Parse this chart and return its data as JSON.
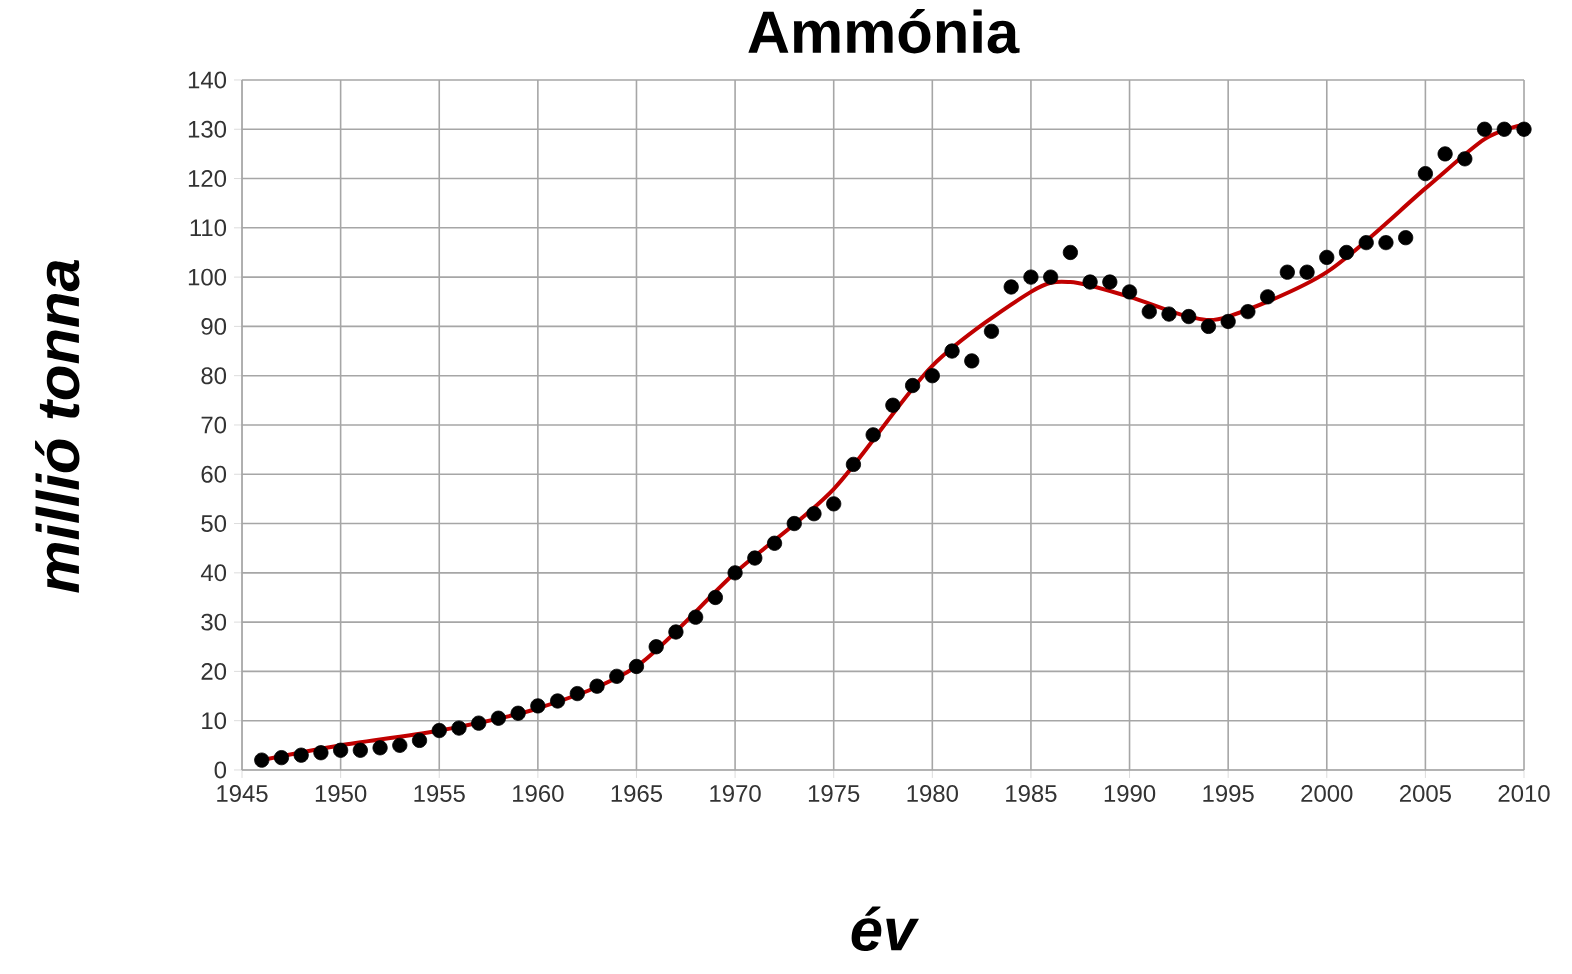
{
  "chart_data": {
    "type": "scatter",
    "title": "Ammónia",
    "xlabel": "év",
    "ylabel": "millió tonna",
    "xlim": [
      1945,
      2010
    ],
    "xticks": [
      1945,
      1950,
      1955,
      1960,
      1965,
      1970,
      1975,
      1980,
      1985,
      1990,
      1995,
      2000,
      2005,
      2010
    ],
    "ylim": [
      0,
      140
    ],
    "yticks": [
      0,
      10,
      20,
      30,
      40,
      50,
      60,
      70,
      80,
      90,
      100,
      110,
      120,
      130,
      140
    ],
    "grid": true,
    "series": [
      {
        "marker": "circle",
        "color": "#000000",
        "x": [
          1946,
          1947,
          1948,
          1949,
          1950,
          1951,
          1952,
          1953,
          1954,
          1955,
          1956,
          1957,
          1958,
          1959,
          1960,
          1961,
          1962,
          1963,
          1964,
          1965,
          1966,
          1967,
          1968,
          1969,
          1970,
          1971,
          1972,
          1973,
          1974,
          1975,
          1976,
          1977,
          1978,
          1979,
          1980,
          1981,
          1982,
          1983,
          1984,
          1985,
          1986,
          1987,
          1988,
          1989,
          1990,
          1991,
          1992,
          1993,
          1994,
          1995,
          1996,
          1997,
          1998,
          1999,
          2000,
          2001,
          2002,
          2003,
          2004,
          2005,
          2006,
          2007,
          2008,
          2009,
          2010
        ],
        "values": [
          2,
          2.5,
          3,
          3.5,
          4,
          4,
          4.5,
          5,
          6,
          8,
          8.5,
          9.5,
          10.5,
          11.5,
          13,
          14,
          15.5,
          17,
          19,
          21,
          25,
          28,
          31,
          35,
          40,
          43,
          46,
          50,
          52,
          54,
          62,
          68,
          74,
          78,
          80,
          85,
          83,
          89,
          98,
          100,
          100,
          105,
          99,
          99,
          97,
          93,
          92.5,
          92,
          90,
          91,
          93,
          96,
          101,
          101,
          104,
          105,
          107,
          107,
          108,
          121,
          125,
          124,
          130,
          130,
          130
        ]
      },
      {
        "type": "line",
        "marker": "none",
        "color": "#c00000",
        "x": [
          1946,
          1950,
          1955,
          1960,
          1965,
          1970,
          1975,
          1980,
          1985,
          1987,
          1990,
          1993,
          1995,
          2000,
          2005,
          2008,
          2010
        ],
        "values": [
          2,
          5,
          8,
          12.5,
          21,
          40,
          57,
          82,
          97,
          99,
          96,
          92,
          92,
          101,
          118,
          128,
          131
        ]
      }
    ]
  }
}
